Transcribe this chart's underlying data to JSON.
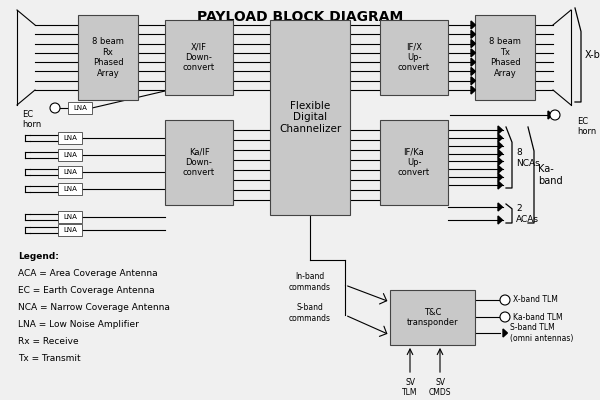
{
  "title": "PAYLOAD BLOCK DIAGRAM",
  "title_fontsize": 10,
  "bg_color": "#f0f0f0",
  "block_color": "#c8c8c8",
  "block_edge_color": "#444444",
  "line_color": "#000000",
  "text_color": "#000000",
  "legend_lines": [
    "Legend:",
    "ACA = Area Coverage Antenna",
    "EC = Earth Coverage Antenna",
    "NCA = Narrow Coverage Antenna",
    "LNA = Low Noise Amplifier",
    "Rx = Receive",
    "Tx = Transmit"
  ]
}
